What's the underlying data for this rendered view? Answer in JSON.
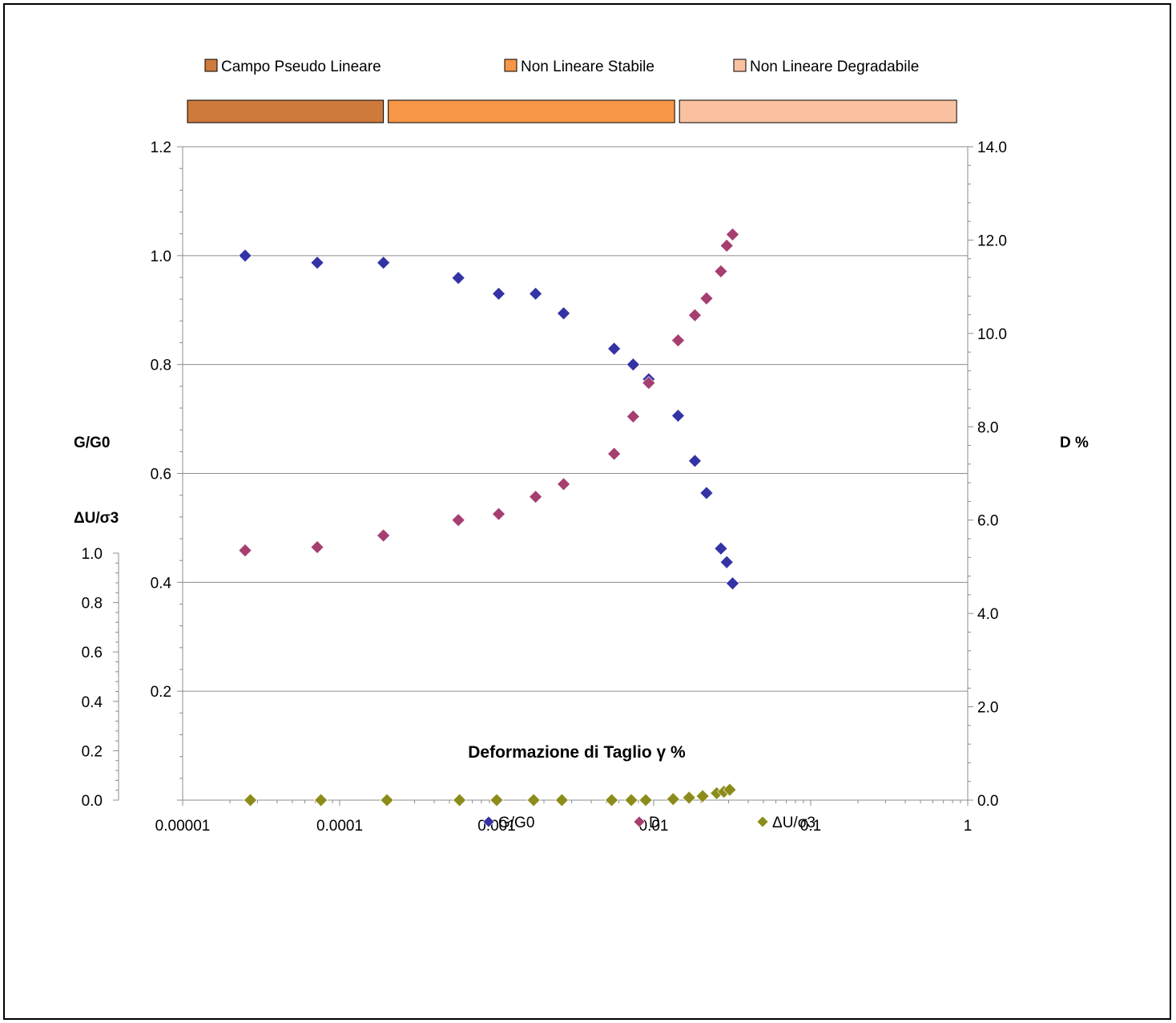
{
  "chart_data": {
    "type": "scatter",
    "title": "",
    "xlabel": "Deformazione di  Taglio  γ %",
    "x_scale": "log",
    "xlim": [
      1e-05,
      1
    ],
    "x_tick_labels": [
      "0.00001",
      "0.0001",
      "0.001",
      "0.01",
      "0.1",
      "1"
    ],
    "y_left": {
      "label": "G/G0",
      "ylim": [
        0,
        1.2
      ],
      "tick_labels": [
        "0.2",
        "0.4",
        "0.6",
        "0.8",
        "1.0",
        "1.2"
      ],
      "grid": true
    },
    "y_right": {
      "label": "D %",
      "ylim": [
        0,
        14
      ],
      "tick_labels": [
        "0.0",
        "2.0",
        "4.0",
        "6.0",
        "8.0",
        "10.0",
        "12.0",
        "14.0"
      ]
    },
    "y_pore": {
      "label": "ΔU/σ3",
      "ylim": [
        0,
        1
      ],
      "tick_labels": [
        "0.0",
        "0.2",
        "0.4",
        "0.6",
        "0.8",
        "1.0"
      ]
    },
    "series": [
      {
        "name": "G/G0",
        "color": "#3333a6",
        "axis": "left",
        "x": [
          2.5e-05,
          7.2e-05,
          0.00019,
          0.00057,
          0.00103,
          0.00177,
          0.00267,
          0.0056,
          0.0074,
          0.0093,
          0.0143,
          0.0183,
          0.0217,
          0.0268,
          0.0292,
          0.0318
        ],
        "y": [
          1.0,
          0.987,
          0.987,
          0.959,
          0.93,
          0.93,
          0.894,
          0.829,
          0.8,
          0.773,
          0.706,
          0.623,
          0.564,
          0.462,
          0.437,
          0.398
        ]
      },
      {
        "name": "D",
        "color": "#a63e70",
        "axis": "right",
        "x": [
          2.5e-05,
          7.2e-05,
          0.00019,
          0.00057,
          0.00103,
          0.00177,
          0.00267,
          0.0056,
          0.0074,
          0.0093,
          0.0143,
          0.0183,
          0.0217,
          0.0268,
          0.0292,
          0.0318
        ],
        "y": [
          5.35,
          5.42,
          5.67,
          6.0,
          6.13,
          6.5,
          6.77,
          7.42,
          8.22,
          8.94,
          9.85,
          10.39,
          10.75,
          11.33,
          11.88,
          12.12
        ]
      },
      {
        "name": "ΔU/σ3",
        "color": "#8c8c1a",
        "axis": "pore",
        "x": [
          2.7e-05,
          7.6e-05,
          0.0002,
          0.00058,
          0.001,
          0.00172,
          0.0026,
          0.0054,
          0.0072,
          0.0089,
          0.0133,
          0.0168,
          0.0205,
          0.0252,
          0.028,
          0.0305
        ],
        "y": [
          0.0,
          0.0,
          0.0,
          0.0,
          0.0,
          0.0,
          0.0,
          0.0,
          0.0,
          0.0,
          0.004,
          0.01,
          0.016,
          0.028,
          0.034,
          0.042
        ]
      }
    ],
    "zones": [
      {
        "label": "Campo Pseudo Lineare",
        "color": "#cd7a3c",
        "x_end": 0.00019
      },
      {
        "label": "Non Lineare Stabile",
        "color": "#f79646",
        "x_end": 0.0136
      },
      {
        "label": "Non Lineare Degradabile",
        "color": "#fac1a1",
        "x_end": 0.85
      }
    ],
    "zones_x_start": 1e-05,
    "legend_position": "bottom"
  }
}
